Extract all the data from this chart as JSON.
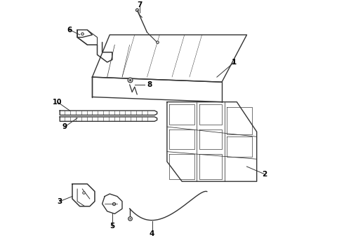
{
  "background_color": "#ffffff",
  "line_color": "#333333",
  "label_color": "#000000",
  "figure_width": 4.9,
  "figure_height": 3.6,
  "dpi": 100
}
